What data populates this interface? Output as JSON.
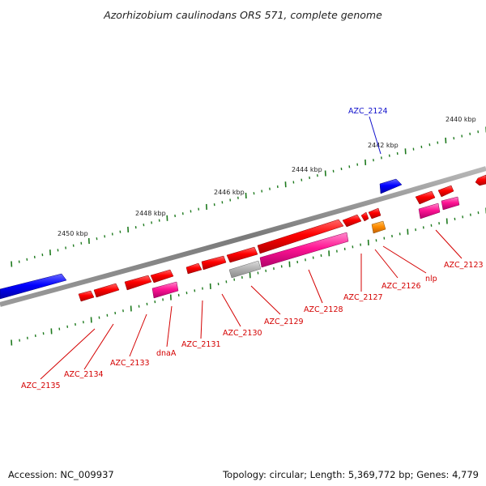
{
  "title": "Azorhizobium caulinodans ORS 571, complete genome",
  "footer": {
    "accession": "Accession: NC_009937",
    "info": "Topology: circular; Length: 5,369,772 bp; Genes: 4,779"
  },
  "colors": {
    "backbone": "#808080",
    "tick": "#1e7a1e",
    "gene_red": "#ff0000",
    "gene_magenta": "#ff1493",
    "gene_blue": "#0000ff",
    "gene_grey": "#b4b4b4",
    "gene_orange": "#ff8c00",
    "label_red": "#d40000",
    "label_blue": "#1010cc"
  },
  "scale": {
    "unit": "kbp",
    "labeled_ticks": [
      "2440 kbp",
      "2442 kbp",
      "2444 kbp",
      "2446 kbp",
      "2448 kbp",
      "2450 kbp"
    ]
  },
  "genes": {
    "labeled": [
      {
        "label": "AZC_2124",
        "color": "blue"
      },
      {
        "label": "AZC_2123",
        "color": "red"
      },
      {
        "label": "nlp",
        "color": "red"
      },
      {
        "label": "AZC_2126",
        "color": "red"
      },
      {
        "label": "AZC_2127",
        "color": "red"
      },
      {
        "label": "AZC_2128",
        "color": "red"
      },
      {
        "label": "AZC_2129",
        "color": "red"
      },
      {
        "label": "AZC_2130",
        "color": "red"
      },
      {
        "label": "AZC_2131",
        "color": "red"
      },
      {
        "label": "dnaA",
        "color": "red"
      },
      {
        "label": "AZC_2133",
        "color": "red"
      },
      {
        "label": "AZC_2134",
        "color": "red"
      },
      {
        "label": "AZC_2135",
        "color": "red"
      }
    ]
  }
}
